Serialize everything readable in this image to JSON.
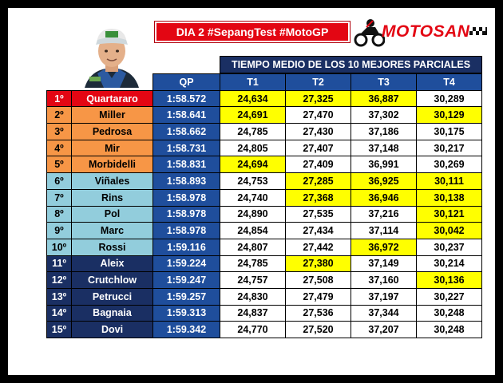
{
  "title": "DIA 2 #SepangTest #MotoGP",
  "logo_text": "MOTOSAN",
  "subtitle": "TIEMPO MEDIO DE LOS 10 MEJORES PARCIALES",
  "headers": {
    "qp": "QP",
    "t1": "T1",
    "t2": "T2",
    "t3": "T3",
    "t4": "T4"
  },
  "colors": {
    "red": "#e30613",
    "orange": "#f79646",
    "light_blue": "#92cddc",
    "navy": "#1a2f63",
    "header_blue": "#1f4e9c",
    "highlight": "#ffff00"
  },
  "rows": [
    {
      "pos": "1º",
      "name": "Quartararo",
      "qp": "1:58.572",
      "t1": "24,634",
      "t2": "27,325",
      "t3": "36,887",
      "t4": "30,289",
      "group": "red",
      "hl": [
        true,
        true,
        true,
        false
      ]
    },
    {
      "pos": "2º",
      "name": "Miller",
      "qp": "1:58.641",
      "t1": "24,691",
      "t2": "27,470",
      "t3": "37,302",
      "t4": "30,129",
      "group": "orange",
      "hl": [
        true,
        false,
        false,
        true
      ]
    },
    {
      "pos": "3º",
      "name": "Pedrosa",
      "qp": "1:58.662",
      "t1": "24,785",
      "t2": "27,430",
      "t3": "37,186",
      "t4": "30,175",
      "group": "orange",
      "hl": [
        false,
        false,
        false,
        false
      ]
    },
    {
      "pos": "4º",
      "name": "Mir",
      "qp": "1:58.731",
      "t1": "24,805",
      "t2": "27,407",
      "t3": "37,148",
      "t4": "30,217",
      "group": "orange",
      "hl": [
        false,
        false,
        false,
        false
      ]
    },
    {
      "pos": "5º",
      "name": "Morbidelli",
      "qp": "1:58.831",
      "t1": "24,694",
      "t2": "27,409",
      "t3": "36,991",
      "t4": "30,269",
      "group": "orange",
      "hl": [
        true,
        false,
        false,
        false
      ]
    },
    {
      "pos": "6º",
      "name": "Viñales",
      "qp": "1:58.893",
      "t1": "24,753",
      "t2": "27,285",
      "t3": "36,925",
      "t4": "30,111",
      "group": "blue",
      "hl": [
        false,
        true,
        true,
        true
      ]
    },
    {
      "pos": "7º",
      "name": "Rins",
      "qp": "1:58.978",
      "t1": "24,740",
      "t2": "27,368",
      "t3": "36,946",
      "t4": "30,138",
      "group": "blue",
      "hl": [
        false,
        true,
        true,
        true
      ]
    },
    {
      "pos": "8º",
      "name": "Pol",
      "qp": "1:58.978",
      "t1": "24,890",
      "t2": "27,535",
      "t3": "37,216",
      "t4": "30,121",
      "group": "blue",
      "hl": [
        false,
        false,
        false,
        true
      ]
    },
    {
      "pos": "9º",
      "name": "Marc",
      "qp": "1:58.978",
      "t1": "24,854",
      "t2": "27,434",
      "t3": "37,114",
      "t4": "30,042",
      "group": "blue",
      "hl": [
        false,
        false,
        false,
        true
      ]
    },
    {
      "pos": "10º",
      "name": "Rossi",
      "qp": "1:59.116",
      "t1": "24,807",
      "t2": "27,442",
      "t3": "36,972",
      "t4": "30,237",
      "group": "blue",
      "hl": [
        false,
        false,
        true,
        false
      ]
    },
    {
      "pos": "11º",
      "name": "Aleix",
      "qp": "1:59.224",
      "t1": "24,785",
      "t2": "27,380",
      "t3": "37,149",
      "t4": "30,214",
      "group": "navy",
      "hl": [
        false,
        true,
        false,
        false
      ]
    },
    {
      "pos": "12º",
      "name": "Crutchlow",
      "qp": "1:59.247",
      "t1": "24,757",
      "t2": "27,508",
      "t3": "37,160",
      "t4": "30,136",
      "group": "navy",
      "hl": [
        false,
        false,
        false,
        true
      ]
    },
    {
      "pos": "13º",
      "name": "Petrucci",
      "qp": "1:59.257",
      "t1": "24,830",
      "t2": "27,479",
      "t3": "37,197",
      "t4": "30,227",
      "group": "navy",
      "hl": [
        false,
        false,
        false,
        false
      ]
    },
    {
      "pos": "14º",
      "name": "Bagnaia",
      "qp": "1:59.313",
      "t1": "24,837",
      "t2": "27,536",
      "t3": "37,344",
      "t4": "30,248",
      "group": "navy",
      "hl": [
        false,
        false,
        false,
        false
      ]
    },
    {
      "pos": "15º",
      "name": "Dovi",
      "qp": "1:59.342",
      "t1": "24,770",
      "t2": "27,520",
      "t3": "37,207",
      "t4": "30,248",
      "group": "navy",
      "hl": [
        false,
        false,
        false,
        false
      ]
    }
  ]
}
